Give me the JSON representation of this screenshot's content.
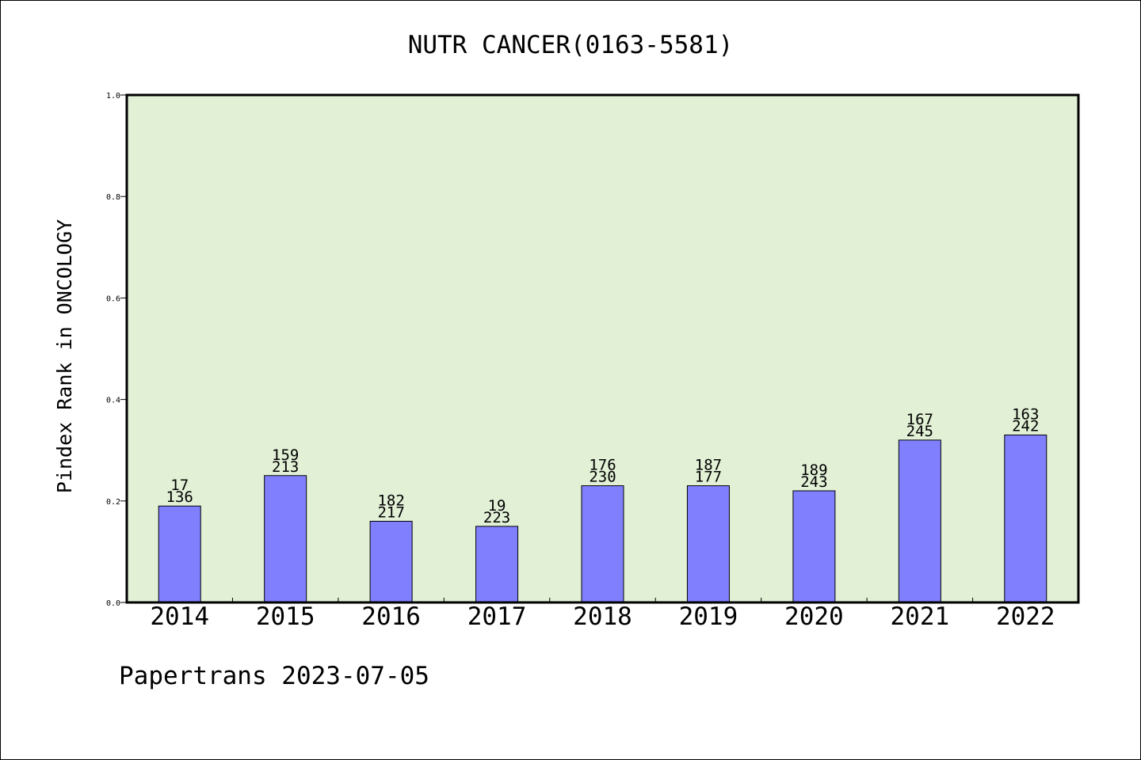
{
  "chart_data": {
    "type": "bar",
    "title": "NUTR CANCER(0163-5581)",
    "xlabel": "",
    "ylabel": "Pindex Rank in ONCOLOGY",
    "categories": [
      "2014",
      "2015",
      "2016",
      "2017",
      "2018",
      "2019",
      "2020",
      "2021",
      "2022"
    ],
    "values": [
      0.19,
      0.25,
      0.16,
      0.15,
      0.23,
      0.23,
      0.22,
      0.32,
      0.33
    ],
    "label_top": [
      "17",
      "159",
      "182",
      "19",
      "176",
      "187",
      "189",
      "167",
      "163"
    ],
    "label_bottom": [
      "136",
      "213",
      "217",
      "223",
      "230",
      "177",
      "243",
      "245",
      "242"
    ],
    "ylim": [
      0,
      1.0
    ],
    "yticks": [
      "0.0",
      "0.2",
      "0.4",
      "0.6",
      "0.8",
      "1.0"
    ],
    "grid": false,
    "legend": "none",
    "footer": "Papertrans 2023-07-05",
    "colors": {
      "bar": "#8080ff",
      "plot_background": "#e2f0d6",
      "axes": "#000000"
    }
  }
}
